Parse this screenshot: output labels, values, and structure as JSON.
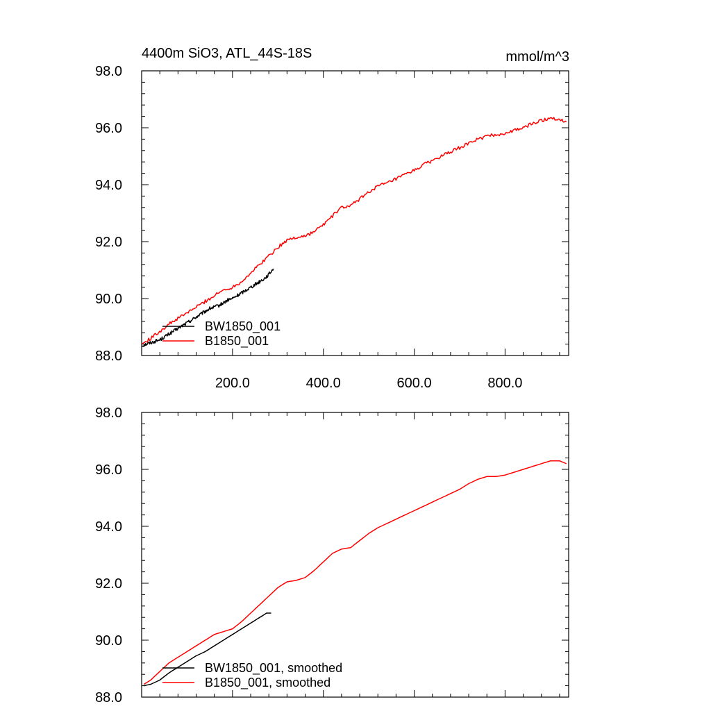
{
  "colors": {
    "BW1850_001": "#000000",
    "B1850_001": "#ff0000",
    "axis": "#000000",
    "background": "#ffffff"
  },
  "chart_data": [
    {
      "type": "line",
      "title": "4400m SiO3, ATL_44S-18S",
      "units": "mmol/m^3",
      "xlim": [
        0,
        940
      ],
      "ylim": [
        88.0,
        98.0
      ],
      "x_ticks": [
        "200.0",
        "400.0",
        "600.0",
        "800.0"
      ],
      "y_ticks": [
        "88.0",
        "90.0",
        "92.0",
        "94.0",
        "96.0",
        "98.0"
      ],
      "grid": false,
      "legend_position": "bottom-left",
      "series": [
        {
          "name": "BW1850_001",
          "color": "#000000",
          "x": [
            1,
            10,
            20,
            30,
            40,
            50,
            60,
            70,
            80,
            90,
            100,
            110,
            120,
            130,
            140,
            150,
            160,
            170,
            180,
            190,
            200,
            210,
            220,
            230,
            240,
            250,
            260,
            270,
            280,
            290
          ],
          "y": [
            88.35,
            88.4,
            88.45,
            88.5,
            88.55,
            88.65,
            88.75,
            88.85,
            88.95,
            89.05,
            89.15,
            89.25,
            89.35,
            89.45,
            89.55,
            89.65,
            89.7,
            89.75,
            89.85,
            89.95,
            90.0,
            90.1,
            90.2,
            90.3,
            90.4,
            90.5,
            90.6,
            90.7,
            90.85,
            91.05
          ]
        },
        {
          "name": "B1850_001",
          "color": "#ff0000",
          "x": [
            1,
            20,
            40,
            60,
            80,
            100,
            120,
            140,
            160,
            180,
            200,
            220,
            240,
            260,
            280,
            300,
            320,
            340,
            360,
            380,
            400,
            420,
            440,
            460,
            480,
            500,
            520,
            540,
            560,
            580,
            600,
            620,
            640,
            660,
            680,
            700,
            720,
            740,
            760,
            780,
            800,
            820,
            840,
            860,
            880,
            900,
            920,
            935
          ],
          "y": [
            88.4,
            88.6,
            88.85,
            89.1,
            89.3,
            89.5,
            89.7,
            89.9,
            90.1,
            90.3,
            90.4,
            90.6,
            90.9,
            91.2,
            91.5,
            91.8,
            92.05,
            92.15,
            92.2,
            92.35,
            92.6,
            92.9,
            93.2,
            93.25,
            93.5,
            93.75,
            93.95,
            94.05,
            94.2,
            94.35,
            94.5,
            94.7,
            94.85,
            95.0,
            95.15,
            95.3,
            95.45,
            95.6,
            95.7,
            95.75,
            95.8,
            95.9,
            96.0,
            96.15,
            96.25,
            96.35,
            96.3,
            96.2
          ]
        }
      ]
    },
    {
      "type": "line",
      "xlim": [
        0,
        940
      ],
      "ylim": [
        88.0,
        98.0
      ],
      "y_ticks": [
        "88.0",
        "90.0",
        "92.0",
        "94.0",
        "96.0",
        "98.0"
      ],
      "grid": false,
      "legend_position": "bottom-left",
      "series": [
        {
          "name": "BW1850_001, smoothed",
          "color": "#000000",
          "x": [
            5,
            20,
            40,
            60,
            80,
            100,
            120,
            140,
            160,
            180,
            200,
            220,
            240,
            260,
            275,
            285
          ],
          "y": [
            88.4,
            88.45,
            88.6,
            88.85,
            89.05,
            89.25,
            89.45,
            89.6,
            89.8,
            90.0,
            90.2,
            90.4,
            90.6,
            90.8,
            90.95,
            90.95
          ]
        },
        {
          "name": "B1850_001, smoothed",
          "color": "#ff0000",
          "x": [
            5,
            20,
            40,
            60,
            80,
            100,
            120,
            140,
            160,
            180,
            200,
            220,
            240,
            260,
            280,
            300,
            320,
            340,
            360,
            380,
            400,
            420,
            440,
            460,
            480,
            500,
            520,
            540,
            560,
            580,
            600,
            620,
            640,
            660,
            680,
            700,
            720,
            740,
            760,
            780,
            800,
            820,
            840,
            860,
            880,
            900,
            920,
            935
          ],
          "y": [
            88.45,
            88.6,
            88.9,
            89.2,
            89.4,
            89.6,
            89.8,
            90.0,
            90.2,
            90.3,
            90.4,
            90.65,
            90.95,
            91.25,
            91.55,
            91.85,
            92.05,
            92.1,
            92.2,
            92.45,
            92.75,
            93.05,
            93.2,
            93.25,
            93.5,
            93.75,
            93.95,
            94.1,
            94.25,
            94.4,
            94.55,
            94.7,
            94.85,
            95.0,
            95.15,
            95.3,
            95.5,
            95.65,
            95.75,
            95.75,
            95.8,
            95.9,
            96.0,
            96.1,
            96.2,
            96.3,
            96.3,
            96.2
          ]
        }
      ]
    }
  ]
}
